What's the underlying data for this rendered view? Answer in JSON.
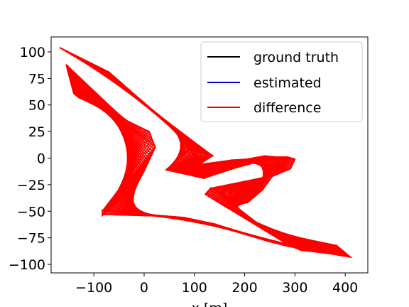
{
  "chart_data": {
    "type": "line",
    "title": "",
    "xlabel": "x [m]",
    "ylabel": "",
    "xlim": [
      -185,
      445
    ],
    "ylim": [
      -108,
      114
    ],
    "x_ticks": [
      -100,
      0,
      100,
      200,
      300,
      400
    ],
    "x_tick_labels": [
      "−100",
      "0",
      "100",
      "200",
      "300",
      "400"
    ],
    "y_ticks": [
      100,
      75,
      50,
      25,
      0,
      -25,
      -50,
      -75,
      -100
    ],
    "y_tick_labels": [
      "100",
      "75",
      "50",
      "25",
      "0",
      "−25",
      "−50",
      "−75",
      "−100"
    ],
    "grid": false,
    "legend_position": "top-right",
    "legend": [
      {
        "label": "ground truth",
        "color": "#000000"
      },
      {
        "label": "estimated",
        "color": "#0000cc"
      },
      {
        "label": "difference",
        "color": "#ff0000"
      }
    ],
    "series": [
      {
        "name": "ground truth",
        "color": "#000000",
        "x": [
          -168,
          -70,
          -17,
          46,
          100,
          137,
          90,
          44,
          120,
          172,
          205,
          240,
          262,
          285,
          300,
          291,
          255,
          235,
          205,
          168,
          133,
          122,
          163,
          215,
          257,
          288,
          314,
          322,
          382,
          410,
          360,
          325,
          287,
          245,
          207,
          140,
          80,
          -30,
          -83,
          -83,
          -23,
          -3,
          22,
          10,
          -21,
          -72,
          -130,
          -140,
          -155
        ],
        "y": [
          104,
          81,
          58,
          32,
          13,
          2,
          8,
          -11,
          -19,
          -2,
          -1,
          2,
          1,
          1,
          -1,
          -10,
          -17,
          -30,
          -42,
          -37,
          -28,
          -34,
          -46,
          -59,
          -71,
          -82,
          -87,
          -85,
          -82,
          -93,
          -89,
          -86,
          -83,
          -78,
          -72,
          -62,
          -56,
          -52,
          -49,
          -54,
          -28,
          -15,
          10,
          25,
          31,
          46,
          57,
          61,
          88
        ]
      },
      {
        "name": "estimated",
        "color": "#0000cc",
        "x": [
          -168,
          -70,
          -17,
          46,
          100,
          137,
          90,
          44,
          120,
          172,
          205,
          240,
          262,
          285,
          300,
          291,
          255,
          235,
          205,
          168,
          133,
          122,
          163,
          215,
          257,
          288,
          314,
          322,
          382,
          410,
          360,
          325,
          287,
          245,
          207,
          140,
          80,
          -30,
          -83,
          -83,
          -23,
          -3,
          22,
          10,
          -21,
          -72,
          -130,
          -140,
          -155
        ],
        "y": [
          104,
          81,
          58,
          32,
          13,
          2,
          8,
          -11,
          -19,
          -2,
          -1,
          2,
          1,
          1,
          -1,
          -10,
          -17,
          -30,
          -42,
          -37,
          -28,
          -34,
          -46,
          -59,
          -71,
          -82,
          -87,
          -85,
          -82,
          -93,
          -89,
          -86,
          -83,
          -78,
          -72,
          -62,
          -56,
          -52,
          -49,
          -54,
          -28,
          -15,
          10,
          25,
          31,
          46,
          57,
          61,
          88
        ]
      }
    ],
    "difference_color": "#ff0000"
  }
}
